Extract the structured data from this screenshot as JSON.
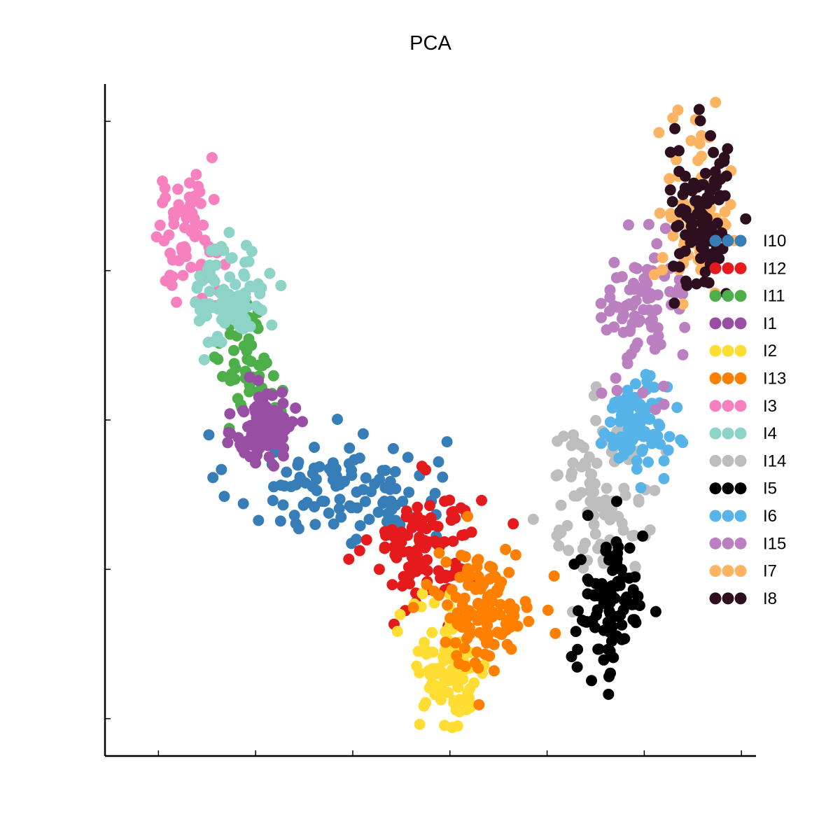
{
  "chart_data": {
    "type": "scatter",
    "title": "PCA",
    "xlabel": "",
    "ylabel": "",
    "xlim": [
      -0.55,
      6.15
    ],
    "ylim": [
      -0.25,
      4.25
    ],
    "xticks": [
      0,
      1,
      2,
      3,
      4,
      5,
      6
    ],
    "yticks": [
      0,
      1,
      2,
      3,
      4
    ],
    "tick_labels_visible": false,
    "grid": false,
    "legend_position": "right",
    "series": [
      {
        "name": "I10",
        "color": "#377eb8",
        "center": [
          1.85,
          1.55
        ],
        "spread": [
          0.55,
          0.18
        ],
        "count": 110
      },
      {
        "name": "I12",
        "color": "#e41a1c",
        "center": [
          2.75,
          1.15
        ],
        "spread": [
          0.28,
          0.2
        ],
        "count": 110
      },
      {
        "name": "I11",
        "color": "#4daf4a",
        "center": [
          0.95,
          2.4
        ],
        "spread": [
          0.15,
          0.2
        ],
        "count": 55
      },
      {
        "name": "I1",
        "color": "#984ea3",
        "center": [
          1.1,
          1.95
        ],
        "spread": [
          0.15,
          0.12
        ],
        "count": 110
      },
      {
        "name": "I2",
        "color": "#ffdd33",
        "center": [
          3.0,
          0.35
        ],
        "spread": [
          0.2,
          0.22
        ],
        "count": 95
      },
      {
        "name": "I13",
        "color": "#ff7f00",
        "center": [
          3.35,
          0.75
        ],
        "spread": [
          0.25,
          0.2
        ],
        "count": 120
      },
      {
        "name": "I3",
        "color": "#f781bf",
        "center": [
          0.3,
          3.2
        ],
        "spread": [
          0.18,
          0.22
        ],
        "count": 65
      },
      {
        "name": "I4",
        "color": "#8dd3c7",
        "center": [
          0.75,
          2.85
        ],
        "spread": [
          0.18,
          0.18
        ],
        "count": 95
      },
      {
        "name": "I14",
        "color": "#bdbdbd",
        "center": [
          4.55,
          1.5
        ],
        "spread": [
          0.3,
          0.28
        ],
        "count": 100
      },
      {
        "name": "I5",
        "color": "#000000",
        "center": [
          4.65,
          0.75
        ],
        "spread": [
          0.18,
          0.25
        ],
        "count": 95
      },
      {
        "name": "I6",
        "color": "#56b4e9",
        "center": [
          4.9,
          1.95
        ],
        "spread": [
          0.17,
          0.15
        ],
        "count": 95
      },
      {
        "name": "I15",
        "color": "#bb80c0",
        "center": [
          5.0,
          2.75
        ],
        "spread": [
          0.2,
          0.25
        ],
        "count": 85
      },
      {
        "name": "I7",
        "color": "#fdb462",
        "center": [
          5.55,
          3.45
        ],
        "spread": [
          0.18,
          0.28
        ],
        "count": 80
      },
      {
        "name": "I8",
        "color": "#2d0f1f",
        "center": [
          5.6,
          3.35
        ],
        "spread": [
          0.17,
          0.28
        ],
        "count": 100
      }
    ]
  }
}
